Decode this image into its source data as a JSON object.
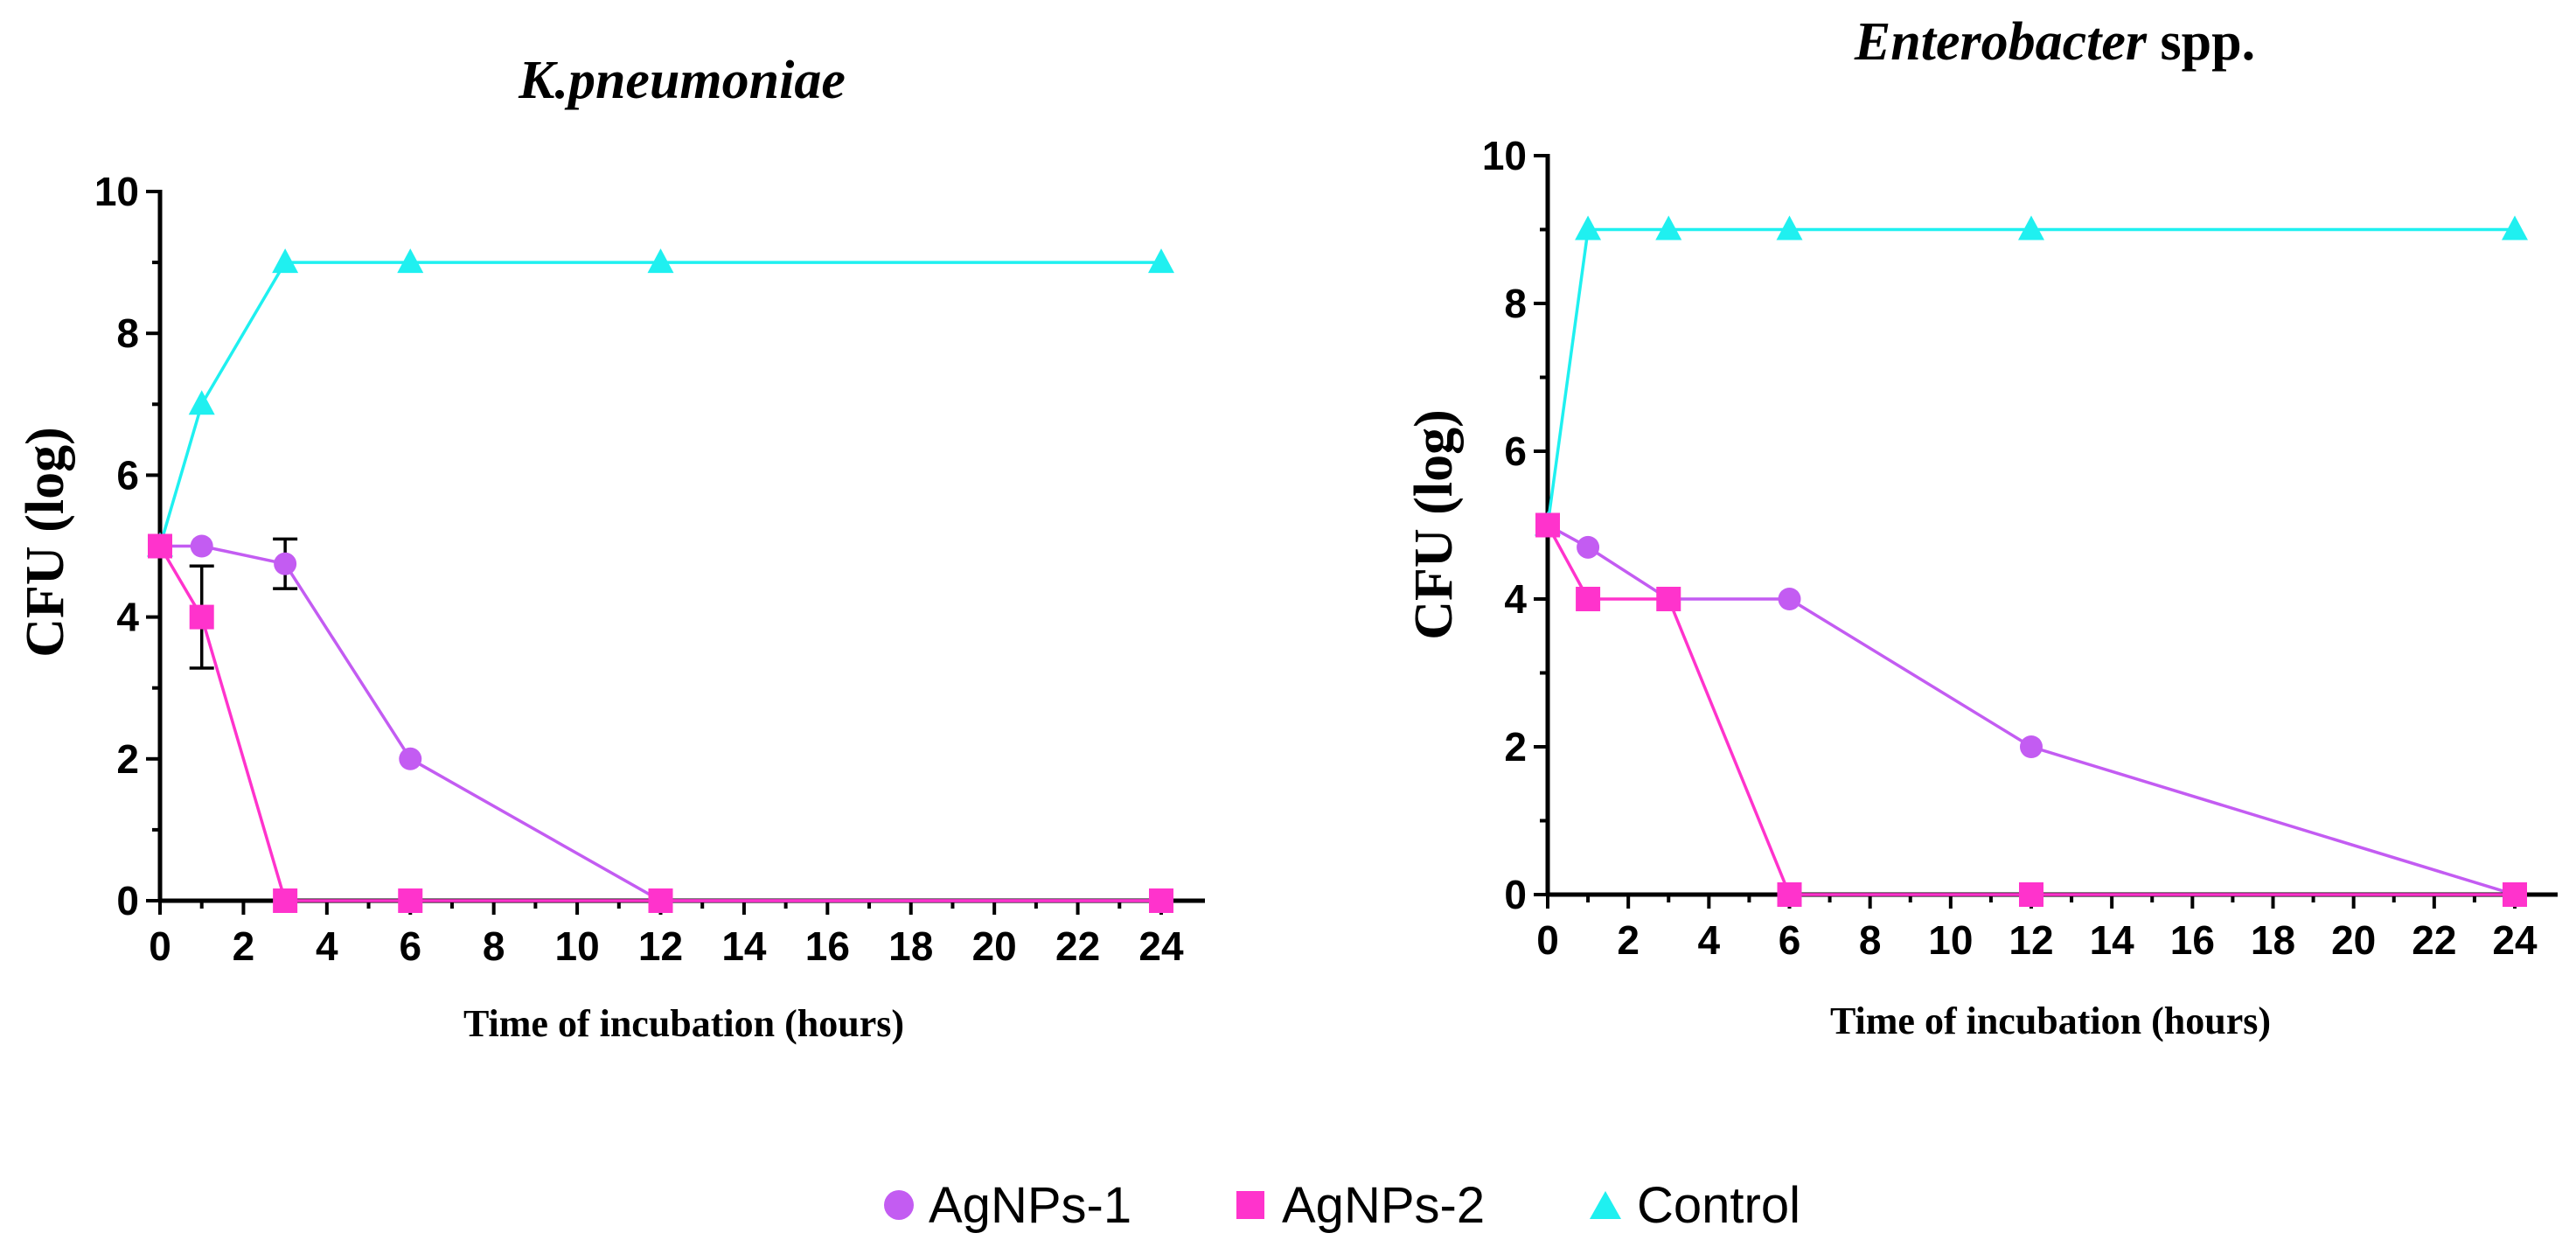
{
  "colors": {
    "agnps1": "#c35cf2",
    "agnps2": "#ff33cc",
    "control": "#1ff0f0"
  },
  "legend": [
    {
      "key": "agnps1",
      "label": "AgNPs-1",
      "marker": "circle"
    },
    {
      "key": "agnps2",
      "label": "AgNPs-2",
      "marker": "square"
    },
    {
      "key": "control",
      "label": "Control",
      "marker": "triangle"
    }
  ],
  "chart_data": [
    {
      "type": "line",
      "title": "K.pneumoniae",
      "xlabel": "Time of incubation (hours)",
      "ylabel": "CFU (log)",
      "xlim": [
        0,
        24
      ],
      "ylim": [
        0,
        10
      ],
      "xticks": [
        0,
        2,
        4,
        6,
        8,
        10,
        12,
        14,
        16,
        18,
        20,
        22,
        24
      ],
      "yticks": [
        0,
        2,
        4,
        6,
        8,
        10
      ],
      "series": [
        {
          "key": "agnps1",
          "name": "AgNPs-1",
          "x": [
            0,
            1,
            3,
            6,
            12,
            24
          ],
          "y": [
            5,
            5,
            4.75,
            2,
            0,
            0
          ],
          "errors": [
            null,
            null,
            0.35,
            null,
            null,
            null
          ]
        },
        {
          "key": "agnps2",
          "name": "AgNPs-2",
          "x": [
            0,
            1,
            3,
            6,
            12,
            24
          ],
          "y": [
            5,
            4,
            0,
            0,
            0,
            0
          ],
          "errors": [
            null,
            0.72,
            null,
            null,
            null,
            null
          ]
        },
        {
          "key": "control",
          "name": "Control",
          "x": [
            0,
            1,
            3,
            6,
            12,
            24
          ],
          "y": [
            5,
            7,
            9,
            9,
            9,
            9
          ],
          "errors": [
            null,
            null,
            null,
            null,
            null,
            null
          ]
        }
      ]
    },
    {
      "type": "line",
      "title_italic": "Enterobacter",
      "title_rest": " spp.",
      "xlabel": "Time of incubation (hours)",
      "ylabel": "CFU (log)",
      "xlim": [
        0,
        24
      ],
      "ylim": [
        0,
        10
      ],
      "xticks": [
        0,
        2,
        4,
        6,
        8,
        10,
        12,
        14,
        16,
        18,
        20,
        22,
        24
      ],
      "yticks": [
        0,
        2,
        4,
        6,
        8,
        10
      ],
      "series": [
        {
          "key": "agnps1",
          "name": "AgNPs-1",
          "x": [
            0,
            1,
            3,
            6,
            12,
            24
          ],
          "y": [
            5,
            4.7,
            4,
            4,
            2,
            0
          ],
          "errors": [
            null,
            null,
            null,
            null,
            null,
            null
          ]
        },
        {
          "key": "agnps2",
          "name": "AgNPs-2",
          "x": [
            0,
            1,
            3,
            6,
            12,
            24
          ],
          "y": [
            5,
            4,
            4,
            0,
            0,
            0
          ],
          "errors": [
            null,
            null,
            null,
            null,
            null,
            null
          ]
        },
        {
          "key": "control",
          "name": "Control",
          "x": [
            0,
            1,
            3,
            6,
            12,
            24
          ],
          "y": [
            5,
            9,
            9,
            9,
            9,
            9
          ],
          "errors": [
            null,
            null,
            null,
            null,
            null,
            null
          ]
        }
      ]
    }
  ]
}
